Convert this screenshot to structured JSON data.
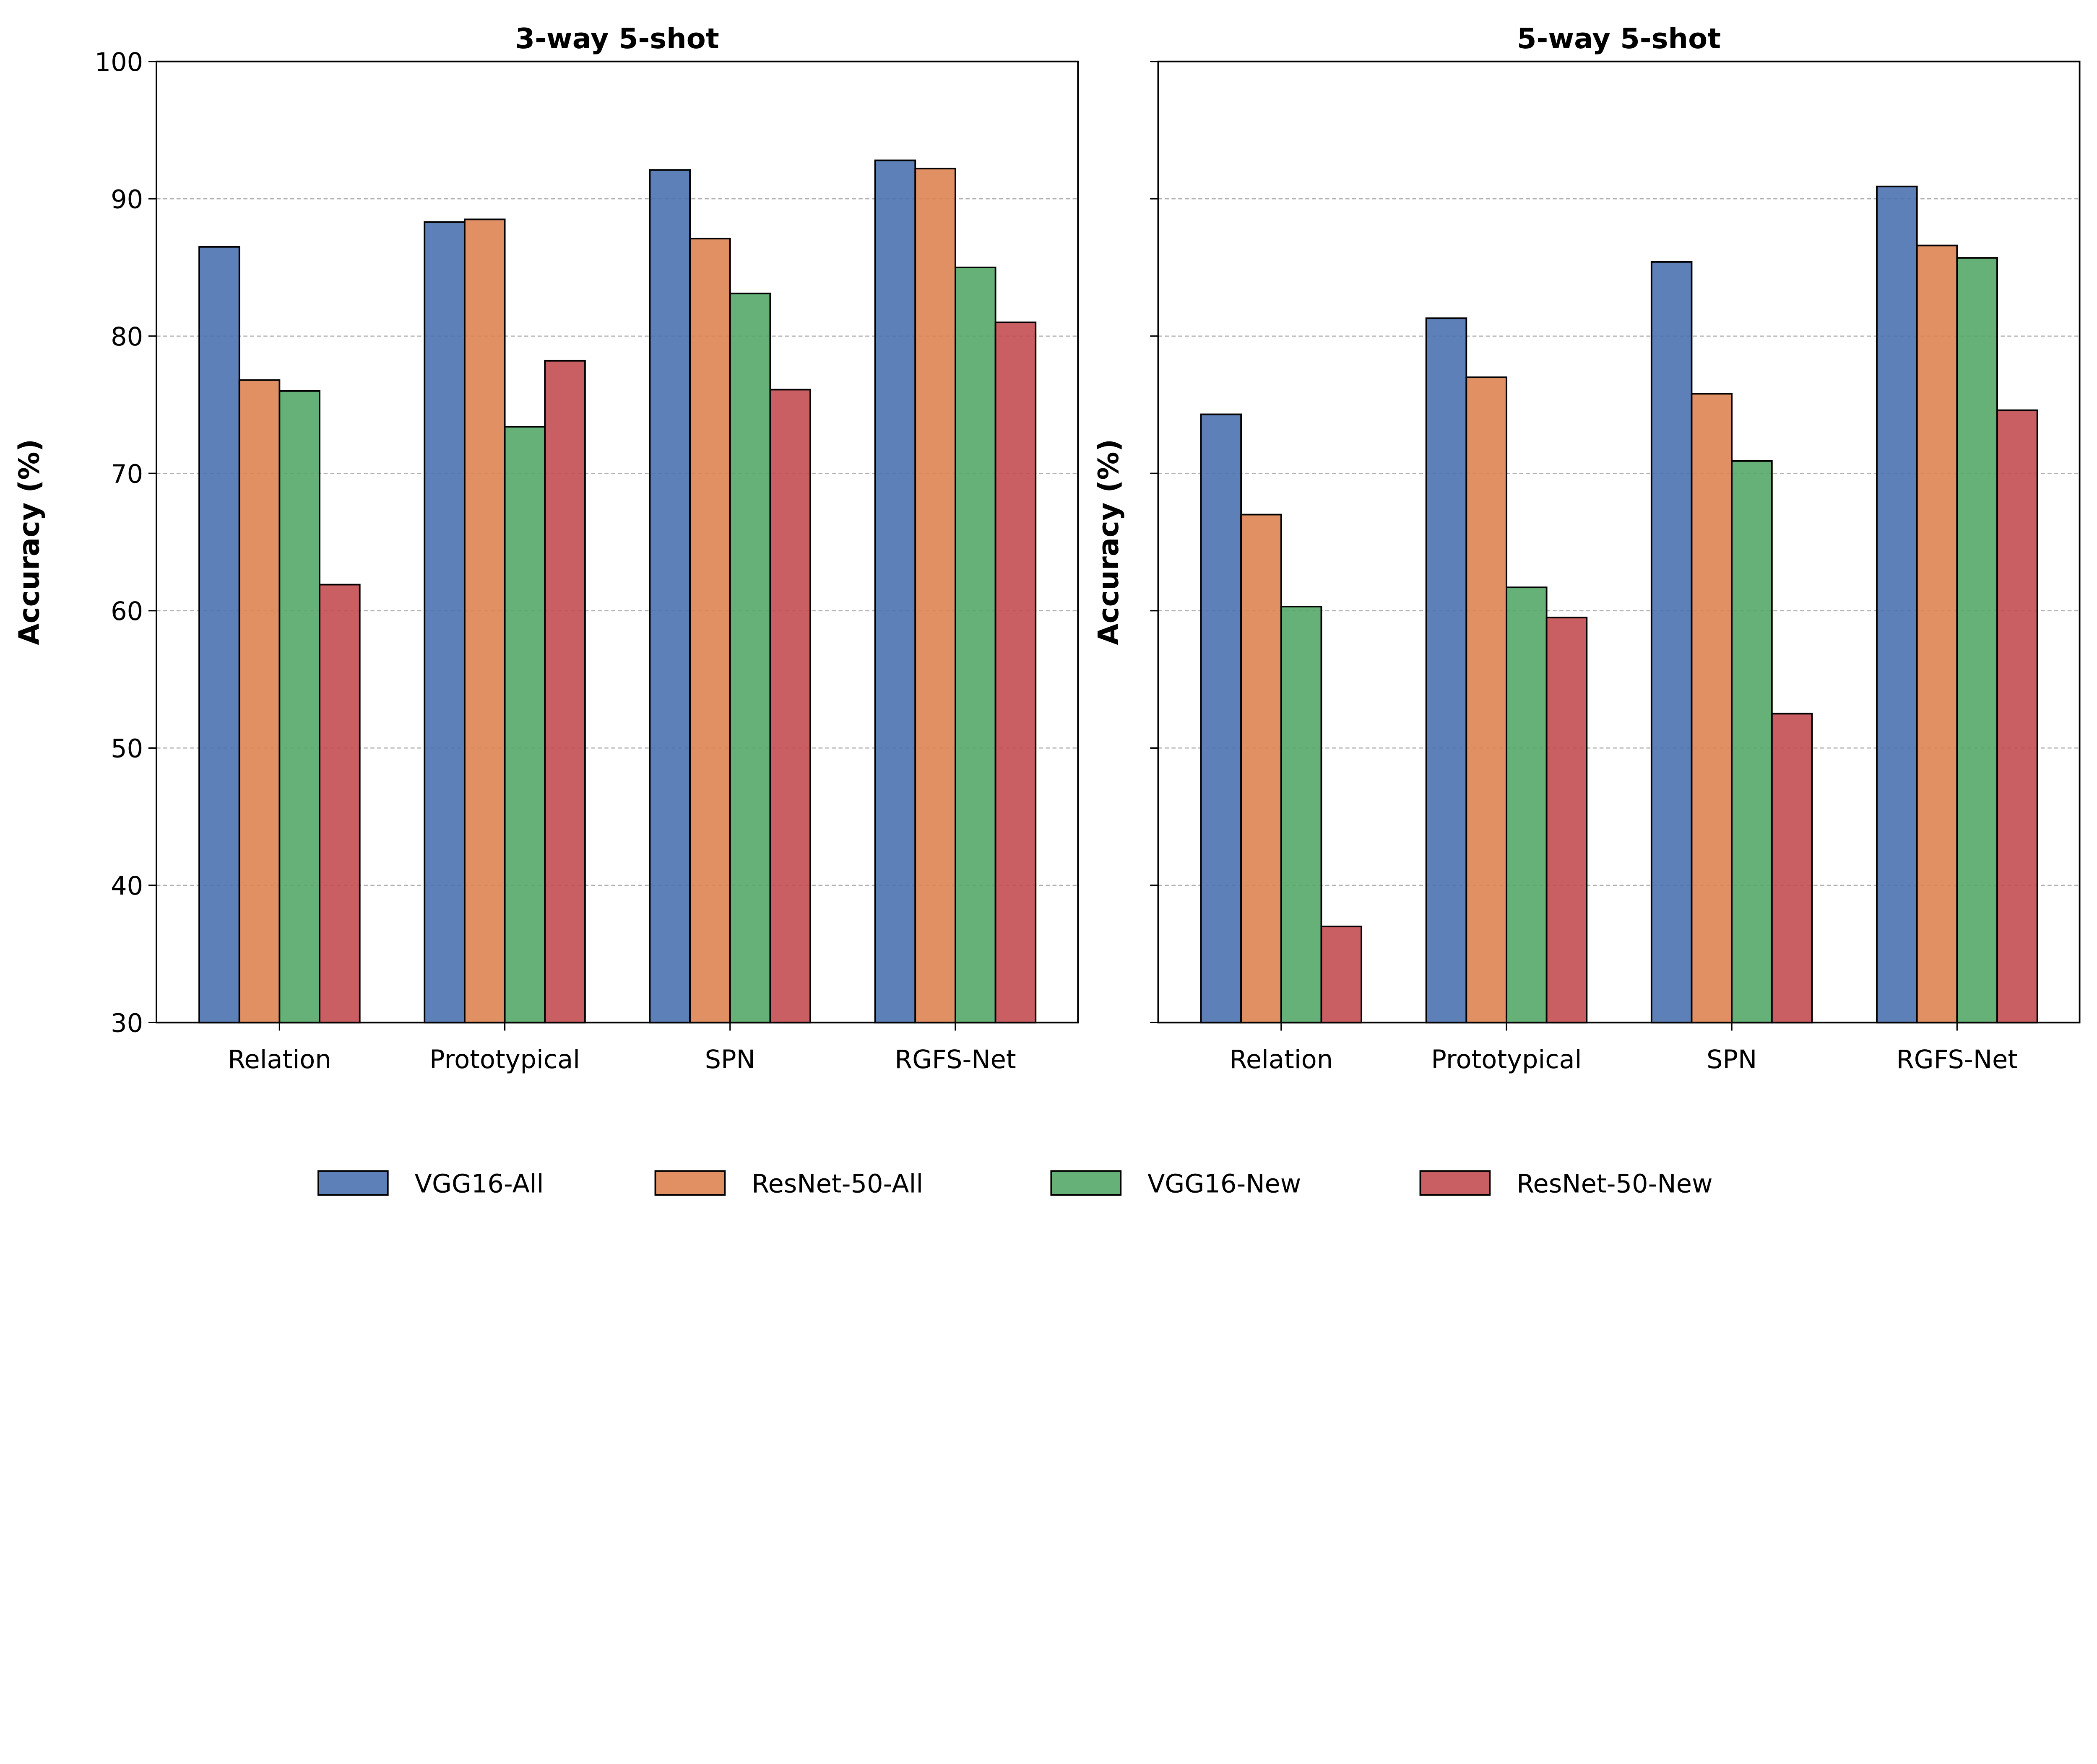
{
  "chart_data": [
    {
      "type": "bar",
      "title": "3-way 5-shot",
      "xlabel": "",
      "ylabel": "Accuracy (%)",
      "ylim": [
        30,
        100
      ],
      "yticks": [
        30,
        40,
        50,
        60,
        70,
        80,
        90,
        100
      ],
      "grid": "y dashed",
      "categories": [
        "Relation",
        "Prototypical",
        "SPN",
        "RGFS-Net"
      ],
      "series": [
        {
          "name": "VGG16-All",
          "values": [
            86.5,
            88.3,
            92.1,
            92.8
          ]
        },
        {
          "name": "ResNet-50-All",
          "values": [
            76.8,
            88.5,
            87.1,
            92.2
          ]
        },
        {
          "name": "VGG16-New",
          "values": [
            76.0,
            73.4,
            83.1,
            85.0
          ]
        },
        {
          "name": "ResNet-50-New",
          "values": [
            61.9,
            78.2,
            76.1,
            81.0
          ]
        }
      ]
    },
    {
      "type": "bar",
      "title": "5-way 5-shot",
      "xlabel": "",
      "ylabel": "Accuracy (%)",
      "ylim": [
        30,
        100
      ],
      "yticks": [
        30,
        40,
        50,
        60,
        70,
        80,
        90,
        100
      ],
      "grid": "y dashed",
      "categories": [
        "Relation",
        "Prototypical",
        "SPN",
        "RGFS-Net"
      ],
      "series": [
        {
          "name": "VGG16-All",
          "values": [
            74.3,
            81.3,
            85.4,
            90.9
          ]
        },
        {
          "name": "ResNet-50-All",
          "values": [
            67.0,
            77.0,
            75.8,
            86.6
          ]
        },
        {
          "name": "VGG16-New",
          "values": [
            60.3,
            61.7,
            70.9,
            85.7
          ]
        },
        {
          "name": "ResNet-50-New",
          "values": [
            37.0,
            59.5,
            52.5,
            74.6
          ]
        }
      ]
    }
  ],
  "legend": {
    "placement": "bottom-center",
    "entries": [
      "VGG16-All",
      "ResNet-50-All",
      "VGG16-New",
      "ResNet-50-New"
    ]
  },
  "colors": [
    "#4C72B0",
    "#DD8452",
    "#55A868",
    "#C44E52"
  ]
}
